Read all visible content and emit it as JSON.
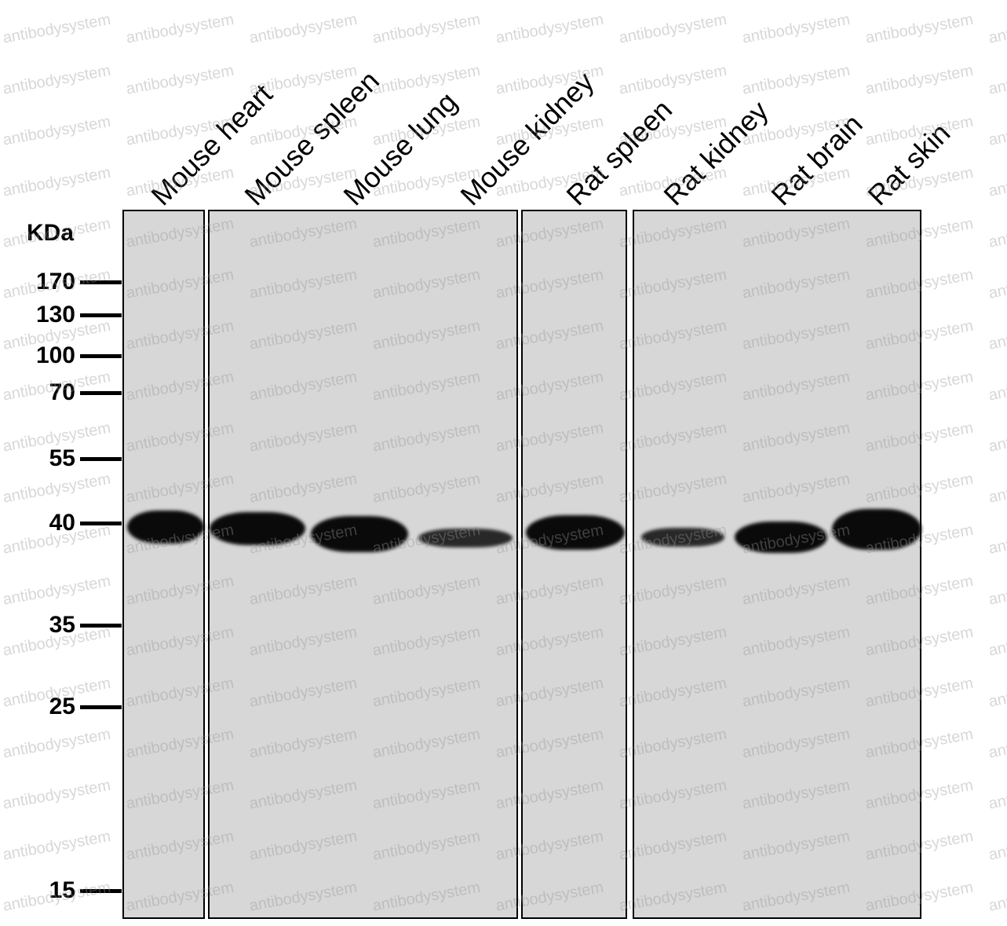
{
  "watermark_text": "antibodysystem",
  "unit_label": "KDa",
  "lanes": [
    {
      "label": "Mouse heart"
    },
    {
      "label": "Mouse spleen"
    },
    {
      "label": "Mouse lung"
    },
    {
      "label": "Mouse kidney"
    },
    {
      "label": "Rat spleen"
    },
    {
      "label": "Rat kidney"
    },
    {
      "label": "Rat brain"
    },
    {
      "label": "Rat skin"
    }
  ],
  "markers": [
    "170",
    "130",
    "100",
    "70",
    "55",
    "40",
    "35",
    "25",
    "15"
  ],
  "colors": {
    "membrane": "#d7d7d7",
    "band": "#0a0a0a",
    "border": "#000000",
    "watermark": "#969696"
  }
}
